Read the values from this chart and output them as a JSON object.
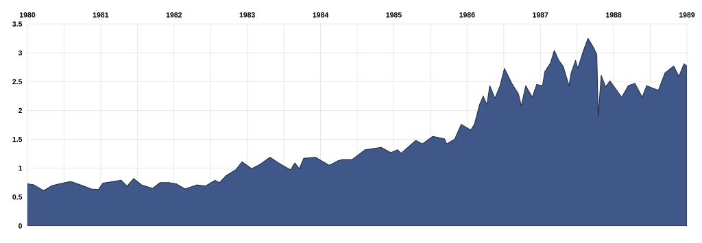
{
  "chart_data": {
    "type": "area",
    "color": "#3f5789",
    "grid": true,
    "xlim": [
      1980,
      1989
    ],
    "ylim": [
      0,
      3.5
    ],
    "xticks": [
      1980,
      {
        "value": 1980.5,
        "label": null
      },
      1981,
      {
        "value": 1981.5,
        "label": null
      },
      1982,
      {
        "value": 1982.5,
        "label": null
      },
      1983,
      {
        "value": 1983.5,
        "label": null
      },
      1984,
      {
        "value": 1984.5,
        "label": null
      },
      1985,
      {
        "value": 1985.5,
        "label": null
      },
      1986,
      {
        "value": 1986.5,
        "label": null
      },
      1987,
      {
        "value": 1987.5,
        "label": null
      },
      1988,
      {
        "value": 1988.5,
        "label": null
      },
      1989
    ],
    "yticks": [
      0,
      0.5,
      1,
      1.5,
      2,
      2.5,
      3,
      3.5
    ],
    "x": [
      1980.0,
      1980.09,
      1980.22,
      1980.34,
      1980.44,
      1980.59,
      1980.75,
      1980.87,
      1980.97,
      1981.03,
      1981.18,
      1981.28,
      1981.36,
      1981.45,
      1981.56,
      1981.71,
      1981.81,
      1981.93,
      1982.03,
      1982.15,
      1982.31,
      1982.43,
      1982.56,
      1982.62,
      1982.71,
      1982.84,
      1982.93,
      1983.06,
      1983.18,
      1983.31,
      1983.43,
      1983.59,
      1983.65,
      1983.71,
      1983.77,
      1983.93,
      1984.12,
      1984.24,
      1984.3,
      1984.43,
      1984.61,
      1984.83,
      1984.96,
      1985.05,
      1985.1,
      1985.3,
      1985.39,
      1985.53,
      1985.69,
      1985.72,
      1985.83,
      1985.92,
      1986.05,
      1986.1,
      1986.17,
      1986.22,
      1986.27,
      1986.31,
      1986.38,
      1986.45,
      1986.51,
      1986.61,
      1986.7,
      1986.74,
      1986.8,
      1986.89,
      1986.95,
      1987.03,
      1987.06,
      1987.14,
      1987.19,
      1987.25,
      1987.31,
      1987.39,
      1987.42,
      1987.48,
      1987.51,
      1987.58,
      1987.65,
      1987.73,
      1987.77,
      1987.79,
      1987.83,
      1987.89,
      1987.95,
      1988.03,
      1988.11,
      1988.2,
      1988.29,
      1988.39,
      1988.45,
      1988.61,
      1988.7,
      1988.82,
      1988.89,
      1988.96,
      1989.0
    ],
    "values": [
      0.73,
      0.71,
      0.61,
      0.7,
      0.73,
      0.77,
      0.7,
      0.64,
      0.63,
      0.74,
      0.77,
      0.79,
      0.69,
      0.82,
      0.71,
      0.65,
      0.75,
      0.75,
      0.73,
      0.64,
      0.71,
      0.69,
      0.79,
      0.75,
      0.87,
      0.97,
      1.11,
      0.99,
      1.07,
      1.19,
      1.09,
      0.97,
      1.09,
      0.99,
      1.17,
      1.19,
      1.05,
      1.13,
      1.15,
      1.15,
      1.32,
      1.36,
      1.27,
      1.32,
      1.26,
      1.48,
      1.42,
      1.55,
      1.51,
      1.42,
      1.5,
      1.76,
      1.66,
      1.76,
      2.1,
      2.25,
      2.1,
      2.43,
      2.21,
      2.43,
      2.73,
      2.47,
      2.29,
      2.08,
      2.43,
      2.23,
      2.45,
      2.43,
      2.67,
      2.83,
      3.04,
      2.87,
      2.77,
      2.43,
      2.65,
      2.87,
      2.73,
      3.01,
      3.25,
      3.08,
      2.97,
      1.9,
      2.61,
      2.41,
      2.51,
      2.37,
      2.23,
      2.43,
      2.47,
      2.23,
      2.43,
      2.35,
      2.65,
      2.77,
      2.59,
      2.81,
      2.77
    ]
  }
}
